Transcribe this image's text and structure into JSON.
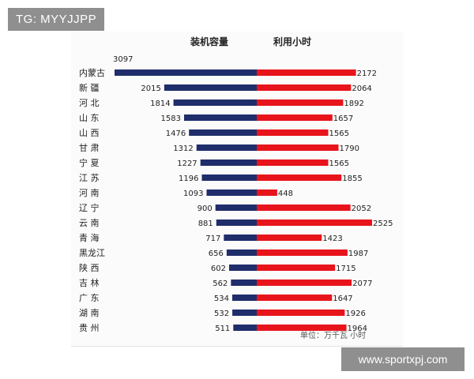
{
  "watermark_top": "TG: MYYJJPP",
  "watermark_bottom": "www.sportxpj.com",
  "colors": {
    "capacity": "#1f2d6b",
    "hours": "#e8141b"
  },
  "chart_data": {
    "type": "bar",
    "orientation": "horizontal-diverging",
    "categories": [
      "内蒙古",
      "新 疆",
      "河 北",
      "山 东",
      "山 西",
      "甘 肃",
      "宁 夏",
      "江 苏",
      "河 南",
      "辽 宁",
      "云 南",
      "青 海",
      "黑龙江",
      "陕 西",
      "吉 林",
      "广 东",
      "湖 南",
      "贵 州"
    ],
    "series": [
      {
        "name": "装机容量",
        "color": "#1f2d6b",
        "values": [
          3097,
          2015,
          1814,
          1583,
          1476,
          1312,
          1227,
          1196,
          1093,
          900,
          881,
          717,
          656,
          602,
          562,
          534,
          532,
          511
        ]
      },
      {
        "name": "利用小时",
        "color": "#e8141b",
        "values": [
          2172,
          2064,
          1892,
          1657,
          1565,
          1790,
          1565,
          1855,
          448,
          2052,
          2525,
          1423,
          1987,
          1715,
          2077,
          1647,
          1926,
          1964
        ]
      }
    ],
    "unit_note": "单位：万千瓦 小时",
    "legend": "top",
    "grid": false
  }
}
